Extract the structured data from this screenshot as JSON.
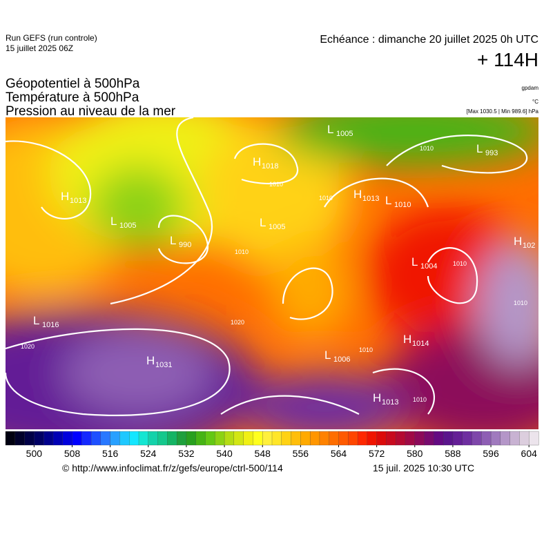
{
  "header": {
    "run": "Run GEFS (run controle)",
    "run_date": "15 juillet 2025 06Z",
    "valid": "Echéance : dimanche 20 juillet 2025 0h UTC",
    "lead": "+ 114H",
    "fields": [
      "Géopotentiel à 500hPa",
      "Température à 500hPa",
      "Pression au niveau de la mer"
    ],
    "units": [
      "gpdam",
      "°C",
      "[Max 1030.5 | Min 989.6] hPa"
    ]
  },
  "map": {
    "centers": [
      {
        "type": "L",
        "value": "1005"
      },
      {
        "type": "L",
        "value": "993"
      },
      {
        "type": "H",
        "value": "1018"
      },
      {
        "type": "H",
        "value": "1013"
      },
      {
        "type": "L",
        "value": "1005"
      },
      {
        "type": "L",
        "value": "990"
      },
      {
        "type": "L",
        "value": "1005"
      },
      {
        "type": "H",
        "value": "1013"
      },
      {
        "type": "L",
        "value": "1010"
      },
      {
        "type": "H",
        "value": "102"
      },
      {
        "type": "L",
        "value": "1004"
      },
      {
        "type": "L",
        "value": "1016"
      },
      {
        "type": "H",
        "value": "1031"
      },
      {
        "type": "L",
        "value": "1006"
      },
      {
        "type": "H",
        "value": "1014"
      },
      {
        "type": "H",
        "value": "1013"
      }
    ],
    "isobar_labels": [
      "1010",
      "1010",
      "1010",
      "1010",
      "1020",
      "1020",
      "1010",
      "1010",
      "1010",
      "1010"
    ]
  },
  "colorbar": {
    "ticks": [
      500,
      508,
      516,
      524,
      532,
      540,
      548,
      556,
      564,
      572,
      580,
      588,
      596,
      604
    ],
    "colors": [
      "#000010",
      "#00002a",
      "#000046",
      "#000064",
      "#00008c",
      "#0000b4",
      "#0000dc",
      "#0000ff",
      "#1428ff",
      "#1e50ff",
      "#2878ff",
      "#28a0ff",
      "#1ec8ff",
      "#14e6ff",
      "#14e6d2",
      "#14d2aa",
      "#14c88c",
      "#14b464",
      "#1ea03c",
      "#28a01e",
      "#46b414",
      "#64c814",
      "#8cd214",
      "#b4dc14",
      "#d2e614",
      "#f0f014",
      "#ffff1e",
      "#fff03c",
      "#ffe628",
      "#ffd214",
      "#ffbe0a",
      "#ffaa00",
      "#ff9600",
      "#ff8200",
      "#ff6e00",
      "#ff5a00",
      "#ff4600",
      "#ff2800",
      "#f01400",
      "#dc0a0a",
      "#c80a1e",
      "#b40a32",
      "#a00a46",
      "#8c0a5a",
      "#780a6e",
      "#640a82",
      "#5a148c",
      "#641e96",
      "#6e2ea0",
      "#7e46aa",
      "#8e5eb4",
      "#a07abe",
      "#b496c8",
      "#c8b2d2",
      "#dccede",
      "#ece4ec"
    ]
  },
  "footer": {
    "url": "© http://www.infoclimat.fr/z/gefs/europe/ctrl-500/114",
    "time": "15 juil. 2025 10:30 UTC"
  }
}
